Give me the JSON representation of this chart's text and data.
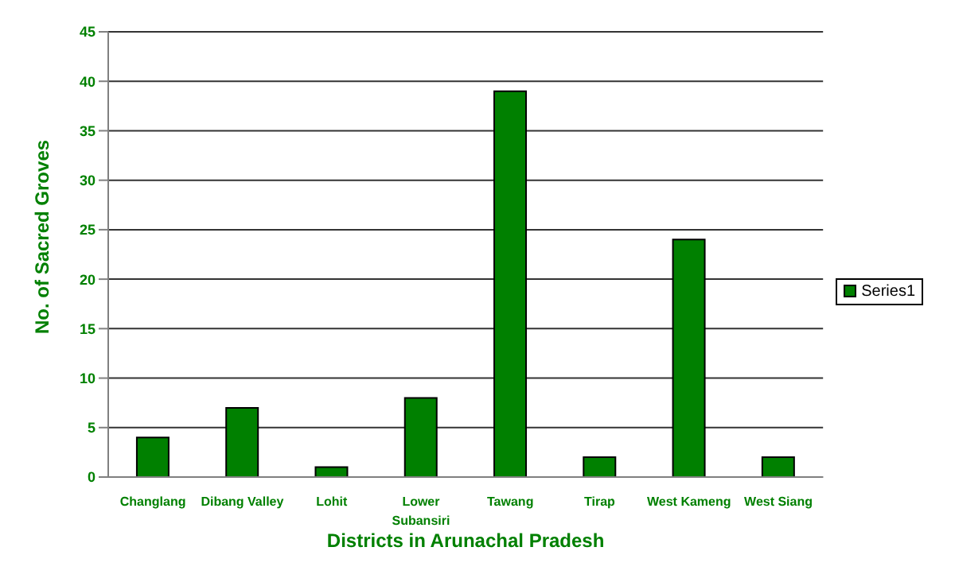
{
  "chart_data": {
    "type": "bar",
    "xlabel": "Districts in Arunachal Pradesh",
    "ylabel": "No. of Sacred Groves",
    "categories": [
      "Changlang",
      "Dibang Valley",
      "Lohit",
      "Lower Subansiri",
      "Tawang",
      "Tirap",
      "West Kameng",
      "West Siang"
    ],
    "series": [
      {
        "name": "Series1",
        "color": "#008000",
        "values": [
          4,
          7,
          1,
          8,
          39,
          2,
          24,
          2
        ]
      }
    ],
    "ylim": [
      0,
      45
    ],
    "yticks": [
      0,
      5,
      10,
      15,
      20,
      25,
      30,
      35,
      40,
      45
    ],
    "grid": "y",
    "legend": "right"
  }
}
